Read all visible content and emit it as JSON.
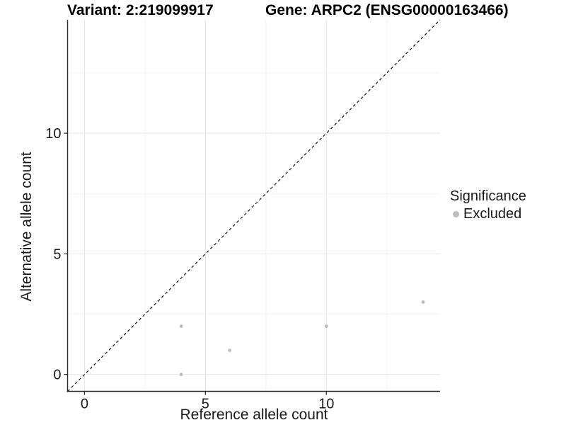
{
  "header": {
    "variant_title": "Variant: 2:219099917",
    "gene_title": "Gene: ARPC2 (ENSG00000163466)"
  },
  "legend": {
    "title": "Significance",
    "items": [
      {
        "label": "Excluded",
        "color": "#bdbdbd"
      }
    ]
  },
  "chart_data": {
    "type": "scatter",
    "title_left": "Variant: 2:219099917",
    "title_right": "Gene: ARPC2 (ENSG00000163466)",
    "xlabel": "Reference allele count",
    "ylabel": "Alternative allele count",
    "xlim": [
      -0.7,
      14.7
    ],
    "ylim": [
      -0.7,
      14.7
    ],
    "x_major_ticks": [
      0,
      5,
      10
    ],
    "y_major_ticks": [
      0,
      5,
      10
    ],
    "x_minor_gridlines": [
      2.5,
      7.5,
      12.5
    ],
    "y_minor_gridlines": [
      2.5,
      7.5,
      12.5
    ],
    "grid": "on",
    "legend_position": "right",
    "series": [
      {
        "name": "Excluded",
        "color": "#bdbdbd",
        "marker": "circle",
        "points": [
          {
            "x": 4,
            "y": 0
          },
          {
            "x": 4,
            "y": 2
          },
          {
            "x": 6,
            "y": 1
          },
          {
            "x": 10,
            "y": 2
          },
          {
            "x": 14,
            "y": 3
          }
        ]
      }
    ],
    "reference_line": {
      "kind": "y-equals-x",
      "style": "dashed",
      "color": "#111111"
    }
  },
  "colors": {
    "point": "#bdbdbd",
    "grid_major": "#e7e7e7",
    "grid_minor": "#f2f2f2",
    "axis_line": "#2b2b2b",
    "tick_text": "#1a1a1a",
    "background": "#ffffff"
  }
}
